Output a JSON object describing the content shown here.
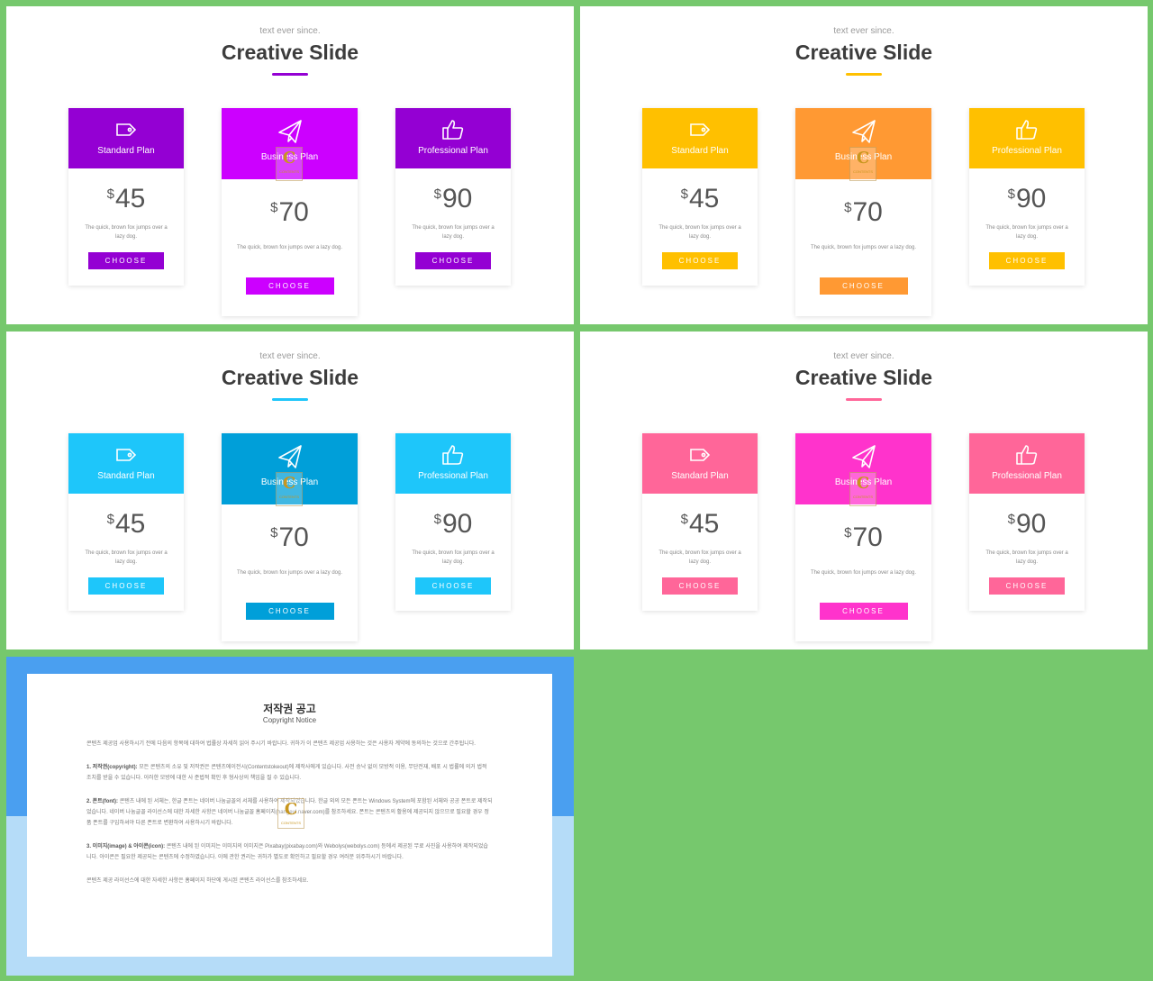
{
  "slides": [
    {
      "subtitle": "text ever since.",
      "title": "Creative Slide",
      "colors": {
        "primary": "#9400d3",
        "featured": "#cc00ff",
        "button": "#9400d3",
        "featured_button": "#cc00ff"
      },
      "plans": [
        {
          "name": "Standard Plan",
          "currency": "$",
          "price": "45",
          "description": "The quick, brown fox jumps over a lazy dog.",
          "button": "CHOOSE",
          "icon": "tag-icon"
        },
        {
          "name": "Business Plan",
          "currency": "$",
          "price": "70",
          "description": "The quick, brown fox jumps over a lazy dog.",
          "button": "CHOOSE",
          "icon": "paper-plane-icon"
        },
        {
          "name": "Professional Plan",
          "currency": "$",
          "price": "90",
          "description": "The quick, brown fox jumps over a lazy dog.",
          "button": "CHOOSE",
          "icon": "thumbs-up-icon"
        }
      ]
    },
    {
      "subtitle": "text ever since.",
      "title": "Creative Slide",
      "colors": {
        "primary": "#ffc000",
        "featured": "#ff9933",
        "button": "#ffc000",
        "featured_button": "#ff9933"
      },
      "plans": [
        {
          "name": "Standard Plan",
          "currency": "$",
          "price": "45",
          "description": "The quick, brown fox jumps over a lazy dog.",
          "button": "CHOOSE",
          "icon": "tag-icon"
        },
        {
          "name": "Business Plan",
          "currency": "$",
          "price": "70",
          "description": "The quick, brown fox jumps over a lazy dog.",
          "button": "CHOOSE",
          "icon": "paper-plane-icon"
        },
        {
          "name": "Professional Plan",
          "currency": "$",
          "price": "90",
          "description": "The quick, brown fox jumps over a lazy dog.",
          "button": "CHOOSE",
          "icon": "thumbs-up-icon"
        }
      ]
    },
    {
      "subtitle": "text ever since.",
      "title": "Creative Slide",
      "colors": {
        "primary": "#1ec6fa",
        "featured": "#009fd9",
        "button": "#1ec6fa",
        "featured_button": "#009fd9"
      },
      "plans": [
        {
          "name": "Standard Plan",
          "currency": "$",
          "price": "45",
          "description": "The quick, brown fox jumps over a lazy dog.",
          "button": "CHOOSE",
          "icon": "tag-icon"
        },
        {
          "name": "Business Plan",
          "currency": "$",
          "price": "70",
          "description": "The quick, brown fox jumps over a lazy dog.",
          "button": "CHOOSE",
          "icon": "paper-plane-icon"
        },
        {
          "name": "Professional Plan",
          "currency": "$",
          "price": "90",
          "description": "The quick, brown fox jumps over a lazy dog.",
          "button": "CHOOSE",
          "icon": "thumbs-up-icon"
        }
      ]
    },
    {
      "subtitle": "text ever since.",
      "title": "Creative Slide",
      "colors": {
        "primary": "#ff6699",
        "featured": "#ff33cc",
        "button": "#ff6699",
        "featured_button": "#ff33cc"
      },
      "plans": [
        {
          "name": "Standard Plan",
          "currency": "$",
          "price": "45",
          "description": "The quick, brown fox jumps over a lazy dog.",
          "button": "CHOOSE",
          "icon": "tag-icon"
        },
        {
          "name": "Business Plan",
          "currency": "$",
          "price": "70",
          "description": "The quick, brown fox jumps over a lazy dog.",
          "button": "CHOOSE",
          "icon": "paper-plane-icon"
        },
        {
          "name": "Professional Plan",
          "currency": "$",
          "price": "90",
          "description": "The quick, brown fox jumps over a lazy dog.",
          "button": "CHOOSE",
          "icon": "thumbs-up-icon"
        }
      ]
    }
  ],
  "watermark": {
    "letter": "C",
    "text": "CONTENTS"
  },
  "notice": {
    "title": "저작권 공고",
    "subtitle": "Copyright Notice",
    "intro": "콘텐츠 제공업 사용하시기 전에 다음의 항목에 대하여 법률상 자세히 읽어 주시기 바랍니다. 귀하가 이 콘텐츠 제공업 사용하는 것은 사용자 계약에 동의하는 것으로 간주됩니다.",
    "p1_label": "1. 저작권(copyright):",
    "p1_text": " 모든 콘텐츠의 소유 및 저작권은 콘텐츠에이전시(Contentstokeout)에 제작사에게 있습니다. 사전 승낙 없이 모방적 이용, 무단전재, 배포 시 법률에 의거 법적 조치를 받을 수 있습니다. 이러한 모방에 대한 사 준법적 확인 후 형사상의 책임을 질 수 있습니다.",
    "p2_label": "2. 폰트(font):",
    "p2_text": " 콘텐츠 내에 된 서체는, 한글 폰트는 네이버 나눔글꼴의 서체를 사용하여 제작되었습니다. 한글 외의 모든 폰트는 Windows System에 포함된 서체와 공공 폰트로 제작되었습니다. 네이버 나눔글꼴 라이선스에 대한 자세한 사항은 네이버 나눔글꼴 홈페이지(hangeul.naver.com)를 참조하세요. 폰트는 콘텐츠의 활용에 제공되지 않으므로 필요할 경우 정품 폰트를 구입하셔야 다른 폰트로 변환하여 사용하시기 바랍니다.",
    "p3_label": "3. 이미지(image) & 아이콘(icon):",
    "p3_text": " 콘텐츠 내에 된 이미지는 이미지의 이미지은 Pixabay(pixabay.com)와 Webolys(webolys.com) 등에서 제공된 무료 사진을 사용하여 제작되었습니다. 아이콘은 필요한 제공되는 콘텐츠에 수정하였습니다. 이에 관한 권리는 귀하가 별도로 확인하고 필요할 경우 여러분 위주하시기 바랍니다.",
    "outro": "콘텐츠 제공 라이선스에 대한 자세한 사항은 홈페이지 하단에 게시된 콘텐츠 라이선스를 참조하세요."
  }
}
